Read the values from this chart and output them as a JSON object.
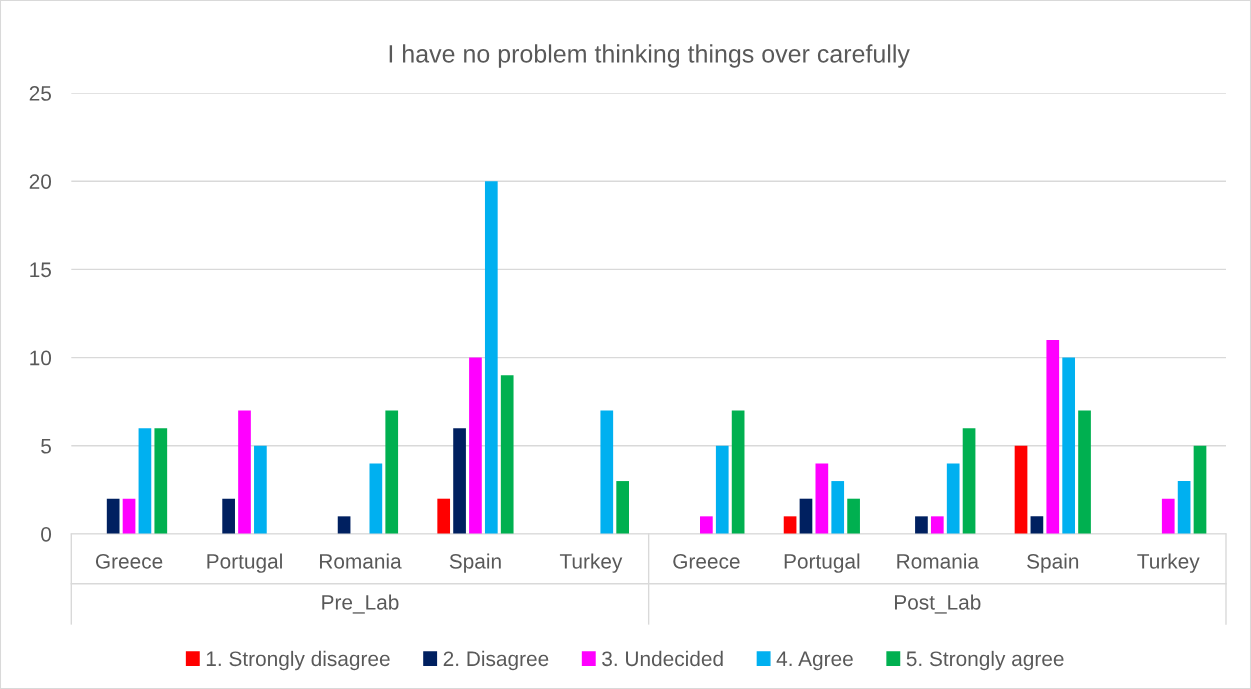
{
  "chart_data": {
    "type": "bar",
    "title": "I have no problem thinking things over carefully",
    "categories": [
      "Greece",
      "Portugal",
      "Romania",
      "Spain",
      "Turkey",
      "Greece",
      "Portugal",
      "Romania",
      "Spain",
      "Turkey"
    ],
    "annotations": [
      "Pre_Lab",
      "Post_Lab"
    ],
    "series": [
      {
        "name": "1. Strongly disagree",
        "color": "#ff0000",
        "values": [
          0,
          0,
          0,
          2,
          0,
          0,
          1,
          0,
          5,
          0
        ]
      },
      {
        "name": "2. Disagree",
        "color": "#002060",
        "values": [
          2,
          2,
          1,
          6,
          0,
          0,
          2,
          1,
          1,
          0
        ]
      },
      {
        "name": "3. Undecided",
        "color": "#ff00ff",
        "values": [
          2,
          7,
          0,
          10,
          0,
          1,
          4,
          1,
          11,
          2
        ]
      },
      {
        "name": "4. Agree",
        "color": "#00b0f0",
        "values": [
          6,
          5,
          4,
          20,
          7,
          5,
          3,
          4,
          10,
          3
        ]
      },
      {
        "name": "5. Strongly agree",
        "color": "#00b050",
        "values": [
          6,
          0,
          7,
          9,
          3,
          7,
          2,
          6,
          7,
          5
        ]
      }
    ],
    "ylim": [
      0,
      25
    ],
    "yticks": [
      0,
      5,
      10,
      15,
      20,
      25
    ],
    "grid": "y",
    "legend": "bottom"
  }
}
